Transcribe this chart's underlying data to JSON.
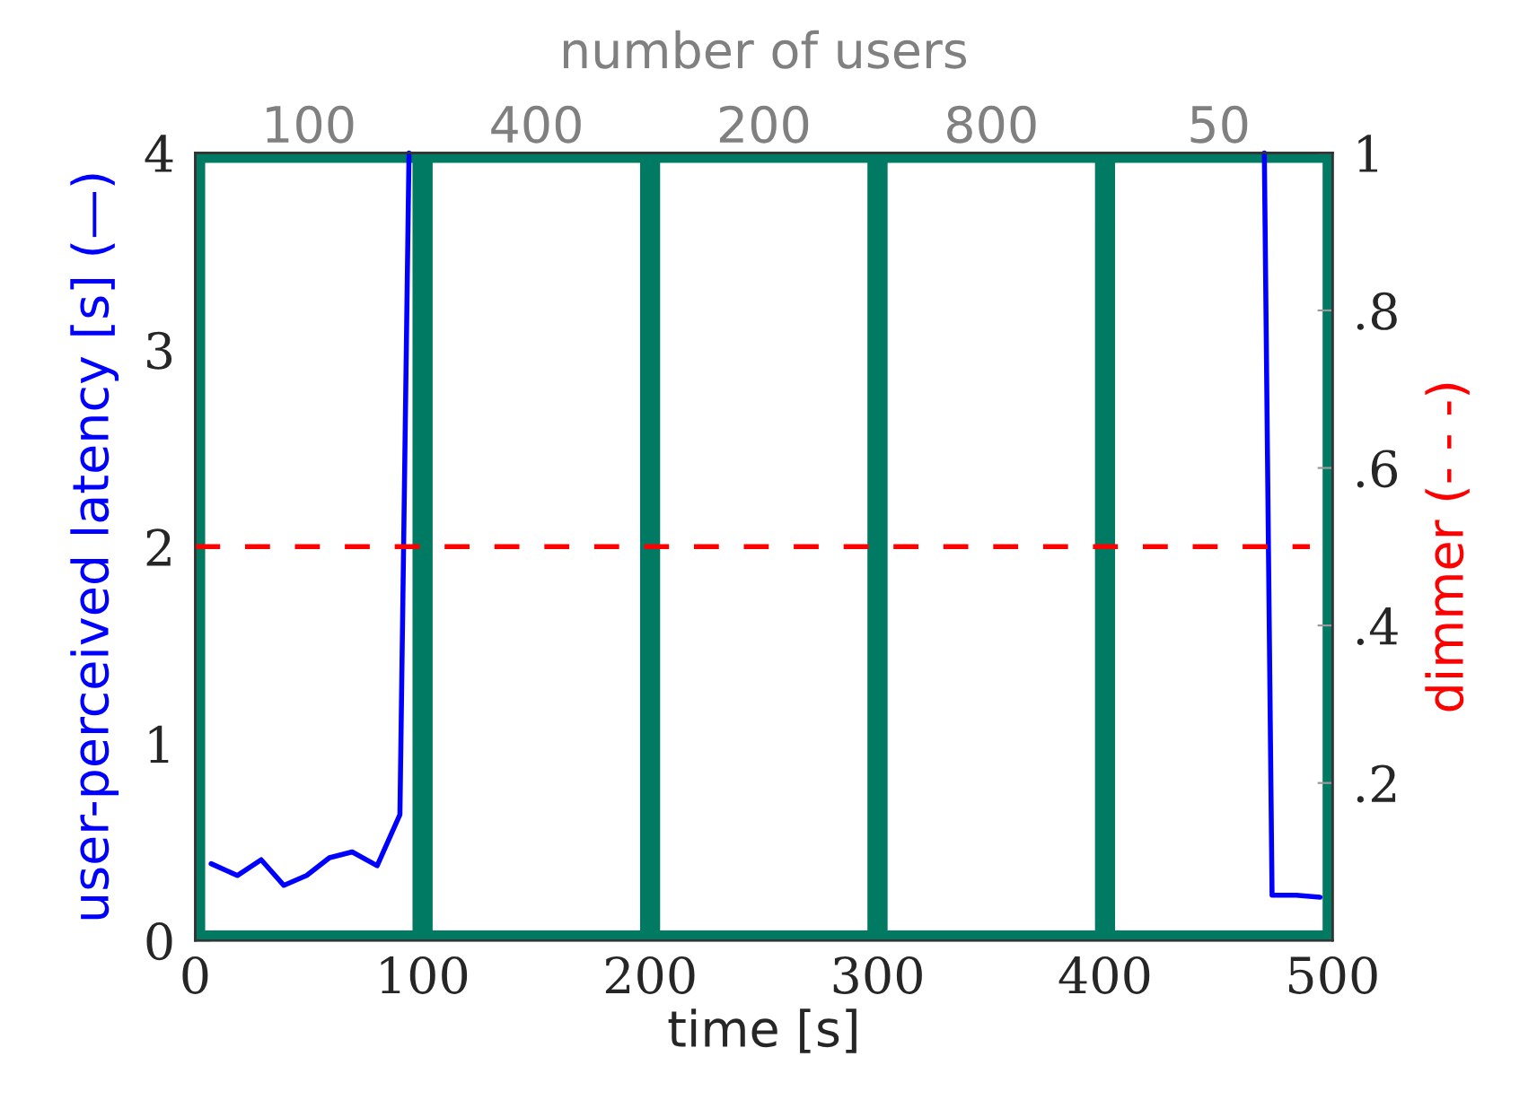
{
  "chart_data": {
    "type": "line",
    "xlabel": "time [s]",
    "ylabel": "user-perceived latency [s] (—)",
    "y2label": "dimmer (- - -)",
    "x2label": "number of users",
    "xlim": [
      0,
      500
    ],
    "xticks": [
      0,
      100,
      200,
      300,
      400,
      500
    ],
    "ylim": [
      0,
      4
    ],
    "yticks": [
      0,
      1,
      2,
      3,
      4
    ],
    "y2lim": [
      0,
      1
    ],
    "y2ticks": [
      {
        "value": 0.2,
        "label": ".2"
      },
      {
        "value": 0.4,
        "label": ".4"
      },
      {
        "value": 0.6,
        "label": ".6"
      },
      {
        "value": 0.8,
        "label": ".8"
      },
      {
        "value": 1,
        "label": "1"
      }
    ],
    "series": [
      {
        "color": "#0000ff",
        "x": [
          7,
          18.5,
          29,
          39,
          49,
          59,
          69,
          80,
          90,
          94,
          null,
          470,
          473.4,
          484,
          494.5
        ],
        "values": [
          0.39,
          0.33,
          0.41,
          0.28,
          0.33,
          0.42,
          0.45,
          0.38,
          0.64,
          4,
          null,
          4,
          0.23,
          0.23,
          0.22
        ],
        "line_style": "solid"
      },
      {
        "color": "#ff0000",
        "axis": "y2",
        "x": [
          0,
          490
        ],
        "values": [
          0.5,
          0.5
        ],
        "line_style": "dashed"
      }
    ],
    "bands": [
      {
        "axis": "x",
        "from": 0,
        "to": 100,
        "color": "#007a63",
        "label": "100"
      },
      {
        "axis": "x",
        "from": 100,
        "to": 200,
        "color": "#007a63",
        "label": "400"
      },
      {
        "axis": "x",
        "from": 200,
        "to": 300,
        "color": "#007a63",
        "label": "200"
      },
      {
        "axis": "x",
        "from": 300,
        "to": 400,
        "color": "#007a63",
        "label": "800"
      },
      {
        "axis": "x",
        "from": 400,
        "to": 500,
        "color": "#007a63",
        "label": "50"
      }
    ],
    "legend": false,
    "marker": "none"
  }
}
